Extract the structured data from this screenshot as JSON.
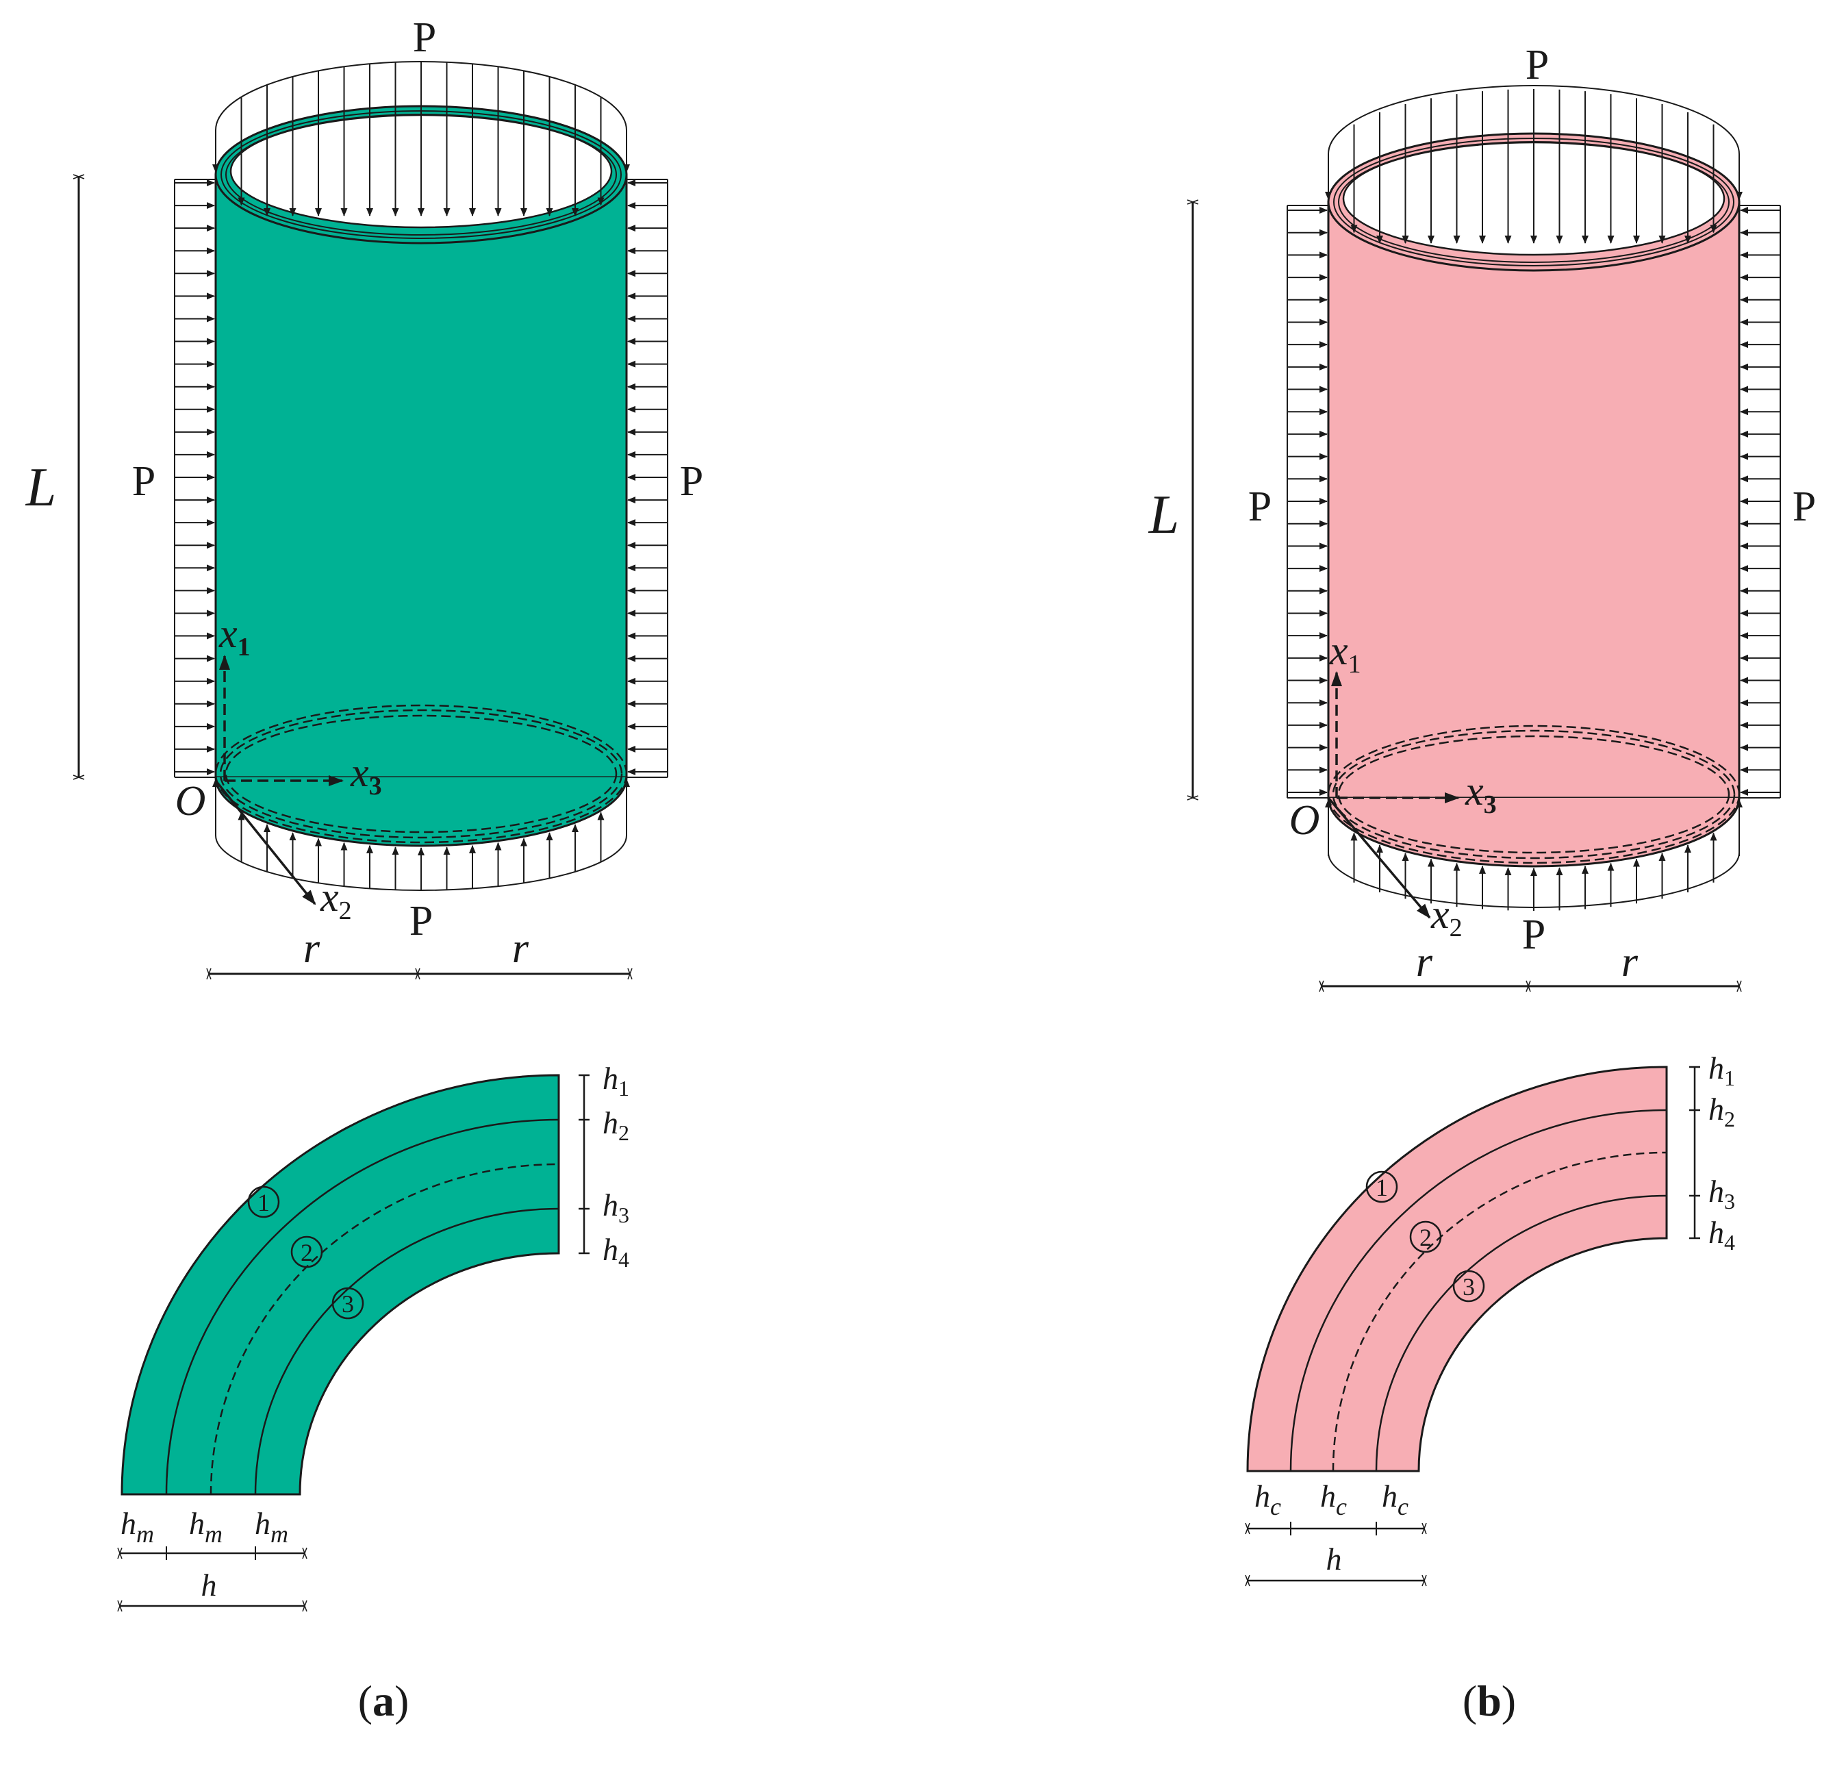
{
  "colors": {
    "panel_a_fill": "#00B294",
    "panel_b_fill": "#F7AEB4",
    "line": "#1a1a1a"
  },
  "labels": {
    "load": "P",
    "length": "L",
    "radius": "r",
    "origin": "O",
    "axis_x1_base": "x",
    "axis_x1_sub": "1",
    "axis_x2_base": "x",
    "axis_x2_sub": "2",
    "axis_x3_base": "x",
    "axis_x3_sub": "3",
    "h1_base": "h",
    "h1_sub": "1",
    "h2_base": "h",
    "h2_sub": "2",
    "h3_base": "h",
    "h3_sub": "3",
    "h4_base": "h",
    "h4_sub": "4",
    "h_total": "h",
    "hm_base": "h",
    "hm_sub": "m",
    "hc_base": "h",
    "hc_sub": "c",
    "layer1": "1",
    "layer2": "2",
    "layer3": "3"
  },
  "captions": {
    "a": {
      "open": "(",
      "letter": "a",
      "close": ")"
    },
    "b": {
      "open": "(",
      "letter": "b",
      "close": ")"
    }
  }
}
